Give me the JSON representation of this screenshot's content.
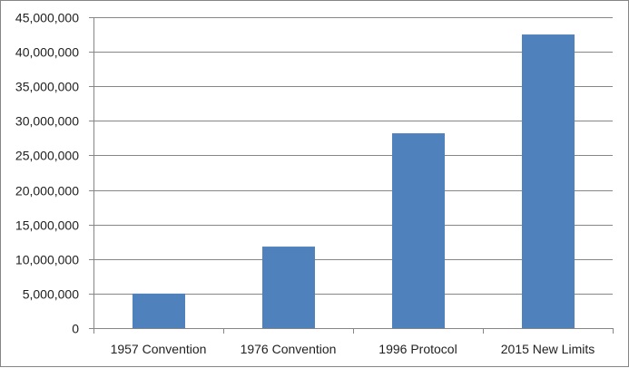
{
  "chart_data": {
    "type": "bar",
    "title": "",
    "xlabel": "",
    "ylabel": "",
    "categories": [
      "1957 Convention",
      "1976 Convention",
      "1996 Protocol",
      "2015 New Limits"
    ],
    "values": [
      5000000,
      11800000,
      28200000,
      42500000
    ],
    "ylim": [
      0,
      45000000
    ],
    "yticks": [
      0,
      5000000,
      10000000,
      15000000,
      20000000,
      25000000,
      30000000,
      35000000,
      40000000,
      45000000
    ],
    "ytick_labels": [
      "0",
      "5,000,000",
      "10,000,000",
      "15,000,000",
      "20,000,000",
      "25,000,000",
      "30,000,000",
      "35,000,000",
      "40,000,000",
      "45,000,000"
    ],
    "grid": true,
    "legend": "none",
    "bar_color": "#4f81bd",
    "grid_color": "#868686"
  }
}
